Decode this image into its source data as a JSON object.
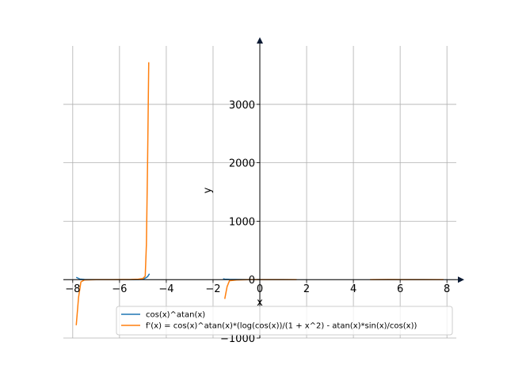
{
  "chart_data": {
    "type": "line",
    "title": "",
    "xlabel": "x",
    "ylabel": "y",
    "xlim": [
      -8.4,
      8.4
    ],
    "ylim": [
      -1000,
      4000
    ],
    "x_ticks": [
      -8,
      -6,
      -4,
      -2,
      0,
      2,
      4,
      6,
      8
    ],
    "y_ticks": [
      -1000,
      0,
      1000,
      2000,
      3000
    ],
    "x_tick_labels": [
      "−8",
      "−6",
      "−4",
      "−2",
      "0",
      "2",
      "4",
      "6",
      "8"
    ],
    "y_tick_labels": [
      "−1000",
      "0",
      "1000",
      "2000",
      "3000"
    ],
    "grid": true,
    "legend_position": "bottom-right",
    "series": [
      {
        "name": "cos(x)^atan(x)",
        "color": "#1f77b4",
        "segments": [
          [
            [
              -7.85,
              40
            ],
            [
              -7.7,
              10
            ],
            [
              -7.5,
              2
            ],
            [
              -7.0,
              0.5
            ],
            [
              -6.0,
              0.5
            ],
            [
              -5.5,
              1
            ],
            [
              -5.2,
              3
            ],
            [
              -5.0,
              8
            ],
            [
              -4.9,
              25
            ],
            [
              -4.8,
              50
            ],
            [
              -4.72,
              100
            ]
          ],
          [
            [
              -1.57,
              15
            ],
            [
              -1.5,
              8
            ],
            [
              -1.3,
              4
            ],
            [
              -1.0,
              2
            ],
            [
              -0.5,
              1.1
            ],
            [
              0,
              1
            ],
            [
              0.5,
              0.9
            ],
            [
              1.0,
              0.5
            ],
            [
              1.57,
              0
            ]
          ],
          [
            [
              4.72,
              0
            ],
            [
              5.5,
              0.8
            ],
            [
              6.28,
              1
            ],
            [
              7.0,
              0.8
            ],
            [
              7.85,
              0
            ]
          ]
        ]
      },
      {
        "name": "f'(x) = cos(x)^atan(x)*(log(cos(x))/(1 + x^2) - atan(x)*sin(x)/cos(x))",
        "color": "#ff7f0e",
        "segments": [
          [
            [
              -7.85,
              -780
            ],
            [
              -7.75,
              -300
            ],
            [
              -7.65,
              -40
            ],
            [
              -7.5,
              -5
            ],
            [
              -7.0,
              -1
            ],
            [
              -6.28,
              0
            ],
            [
              -5.5,
              2
            ],
            [
              -5.2,
              8
            ],
            [
              -5.0,
              20
            ],
            [
              -4.9,
              60
            ],
            [
              -4.85,
              600
            ],
            [
              -4.8,
              2000
            ],
            [
              -4.75,
              3720
            ]
          ],
          [
            [
              -1.5,
              -330
            ],
            [
              -1.4,
              -120
            ],
            [
              -1.3,
              -20
            ],
            [
              -1.0,
              -5
            ],
            [
              -0.5,
              -0.5
            ],
            [
              0,
              0
            ],
            [
              0.5,
              -0.5
            ],
            [
              1.0,
              -1
            ],
            [
              1.5,
              -0.5
            ],
            [
              1.57,
              0
            ]
          ],
          [
            [
              4.72,
              0
            ],
            [
              5.5,
              0.5
            ],
            [
              6.28,
              0
            ],
            [
              7.0,
              -0.5
            ],
            [
              7.85,
              0
            ]
          ]
        ]
      }
    ]
  }
}
